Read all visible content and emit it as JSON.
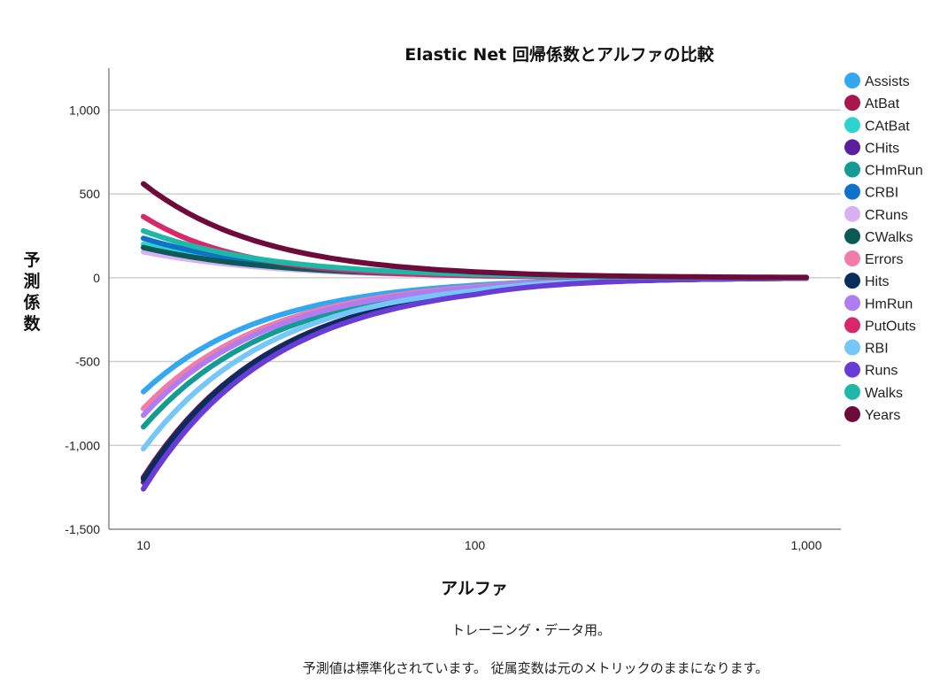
{
  "chart_data": {
    "type": "line",
    "title": "Elastic Net 回帰係数とアルファの比較",
    "xlabel": "アルファ",
    "ylabel": "予測係数",
    "x_scale": "log",
    "xlim": [
      10,
      1000
    ],
    "ylim": [
      -1500,
      1250
    ],
    "x_ticks": [
      10,
      100,
      1000
    ],
    "x_tick_labels": [
      "10",
      "100",
      "1,000"
    ],
    "y_ticks": [
      -1500,
      -1000,
      -500,
      0,
      500,
      1000
    ],
    "y_tick_labels": [
      "-1,500",
      "-1,000",
      "-500",
      "0",
      "500",
      "1,000"
    ],
    "grid": true,
    "legend_position": "right",
    "x": [
      10,
      100,
      1000
    ],
    "series": [
      {
        "name": "Assists",
        "color": "#33a8f0",
        "values": [
          -680,
          -45,
          -2
        ]
      },
      {
        "name": "AtBat",
        "color": "#a8164e",
        "values": [
          -1190,
          -90,
          -3
        ]
      },
      {
        "name": "CAtBat",
        "color": "#2ed3d0",
        "values": [
          200,
          15,
          1
        ]
      },
      {
        "name": "CHits",
        "color": "#5b1e9e",
        "values": [
          -1220,
          -95,
          -3
        ]
      },
      {
        "name": "CHmRun",
        "color": "#139c93",
        "values": [
          -890,
          -70,
          -2
        ]
      },
      {
        "name": "CRBI",
        "color": "#0f72c8",
        "values": [
          235,
          18,
          1
        ]
      },
      {
        "name": "CRuns",
        "color": "#d8b1f5",
        "values": [
          155,
          12,
          1
        ]
      },
      {
        "name": "CWalks",
        "color": "#0c5a56",
        "values": [
          180,
          14,
          1
        ]
      },
      {
        "name": "Errors",
        "color": "#f27ca8",
        "values": [
          -780,
          -55,
          -2
        ]
      },
      {
        "name": "Hits",
        "color": "#0b2d5e",
        "values": [
          -1200,
          -90,
          -3
        ]
      },
      {
        "name": "HmRun",
        "color": "#b07cf0",
        "values": [
          -820,
          -60,
          -2
        ]
      },
      {
        "name": "PutOuts",
        "color": "#d6286a",
        "values": [
          365,
          12,
          1
        ]
      },
      {
        "name": "RBI",
        "color": "#74c7f7",
        "values": [
          -1020,
          -78,
          -2
        ]
      },
      {
        "name": "Runs",
        "color": "#6a3cd6",
        "values": [
          -1260,
          -100,
          -3
        ]
      },
      {
        "name": "Walks",
        "color": "#1fb8a8",
        "values": [
          280,
          20,
          1
        ]
      },
      {
        "name": "Years",
        "color": "#6e0b3a",
        "values": [
          560,
          35,
          2
        ]
      }
    ]
  },
  "footnotes": [
    "トレーニング・データ用。",
    "予測値は標準化されています。 従属変数は元のメトリックのままになります。"
  ]
}
